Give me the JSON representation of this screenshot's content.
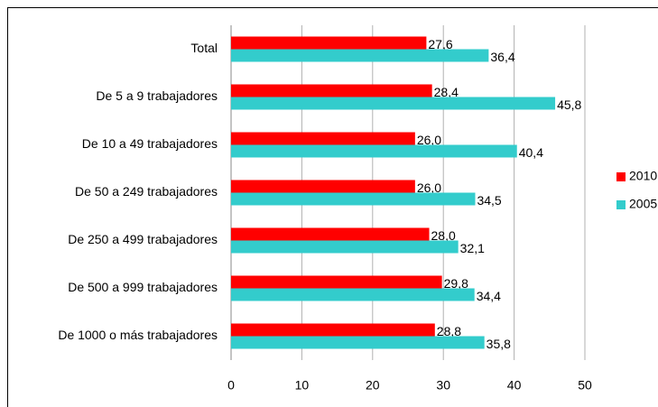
{
  "chart_data": {
    "type": "hbar",
    "categories": [
      "Total",
      "De 5 a 9 trabajadores",
      "De 10 a 49 trabajadores",
      "De 50 a 249 trabajadores",
      "De 250 a 499 trabajadores",
      "De 500 a 999 trabajadores",
      "De 1000 o más trabajadores"
    ],
    "series": [
      {
        "name": "2010",
        "color": "#ff0000",
        "values": [
          27.6,
          28.4,
          26.0,
          26.0,
          28.0,
          29.8,
          28.8
        ],
        "value_labels": [
          "27,6",
          "28,4",
          "26,0",
          "26,0",
          "28,0",
          "29,8",
          "28,8"
        ]
      },
      {
        "name": "2005",
        "color": "#33cccc",
        "values": [
          36.4,
          45.8,
          40.4,
          34.5,
          32.1,
          34.4,
          35.8
        ],
        "value_labels": [
          "36,4",
          "45,8",
          "40,4",
          "34,5",
          "32,1",
          "34,4",
          "35,8"
        ]
      }
    ],
    "xlim": [
      0,
      50
    ],
    "xticks": [
      0,
      10,
      20,
      30,
      40,
      50
    ],
    "grid": true,
    "legend": "right"
  }
}
